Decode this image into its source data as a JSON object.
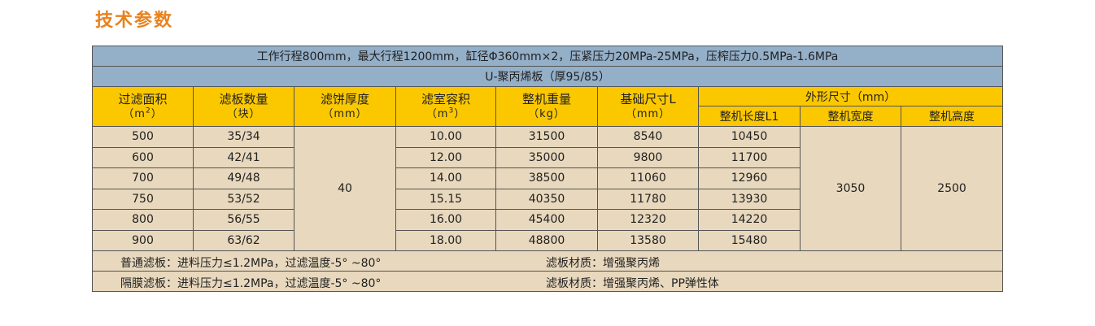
{
  "heading": "技术参数",
  "banner": {
    "line1": "工作行程800mm，最大行程1200mm，缸径Φ360mm×2，压紧压力20MPa-25MPa，压榨压力0.5MPa-1.6MPa",
    "line2": "U-聚丙烯板（厚95/85）"
  },
  "headers": {
    "area": {
      "label": "过滤面积",
      "unit_pre": "（m",
      "unit_sup": "2",
      "unit_post": "）"
    },
    "plates": {
      "label": "滤板数量",
      "unit": "（块）"
    },
    "thickness": {
      "label": "滤饼厚度",
      "unit": "（mm）"
    },
    "volume": {
      "label": "滤室容积",
      "unit_pre": "（m",
      "unit_sup": "3",
      "unit_post": "）"
    },
    "weight": {
      "label": "整机重量",
      "unit": "（kg）"
    },
    "base": {
      "label": "基础尺寸L",
      "unit": "（mm）"
    },
    "outer": {
      "label": "外形尺寸（mm）"
    },
    "length": {
      "label": "整机长度L1"
    },
    "width": {
      "label": "整机宽度"
    },
    "height": {
      "label": "整机高度"
    }
  },
  "rows": [
    {
      "area": "500",
      "plates": "35/34",
      "volume": "10.00",
      "weight": "31500",
      "base": "8540",
      "length": "10450"
    },
    {
      "area": "600",
      "plates": "42/41",
      "volume": "12.00",
      "weight": "35000",
      "base": "9800",
      "length": "11700"
    },
    {
      "area": "700",
      "plates": "49/48",
      "volume": "14.00",
      "weight": "38500",
      "base": "11060",
      "length": "12960"
    },
    {
      "area": "750",
      "plates": "53/52",
      "volume": "15.15",
      "weight": "40350",
      "base": "11780",
      "length": "13930"
    },
    {
      "area": "800",
      "plates": "56/55",
      "volume": "16.00",
      "weight": "45400",
      "base": "12320",
      "length": "14220"
    },
    {
      "area": "900",
      "plates": "63/62",
      "volume": "18.00",
      "weight": "48800",
      "base": "13580",
      "length": "15480"
    }
  ],
  "shared": {
    "thickness": "40",
    "width": "3050",
    "height": "2500"
  },
  "notes": [
    {
      "left": "普通滤板：进料压力≤1.2MPa，过滤温度-5° ~80°",
      "right": "滤板材质：增强聚丙烯"
    },
    {
      "left": "隔膜滤板：进料压力≤1.2MPa，过滤温度-5° ~80°",
      "right": "滤板材质：增强聚丙烯、PP弹性体"
    }
  ],
  "colors": {
    "heading": "#e8821e",
    "banner_bg": "#94afc8",
    "header_bg": "#fbc800",
    "body_bg": "#e8d8bd"
  }
}
